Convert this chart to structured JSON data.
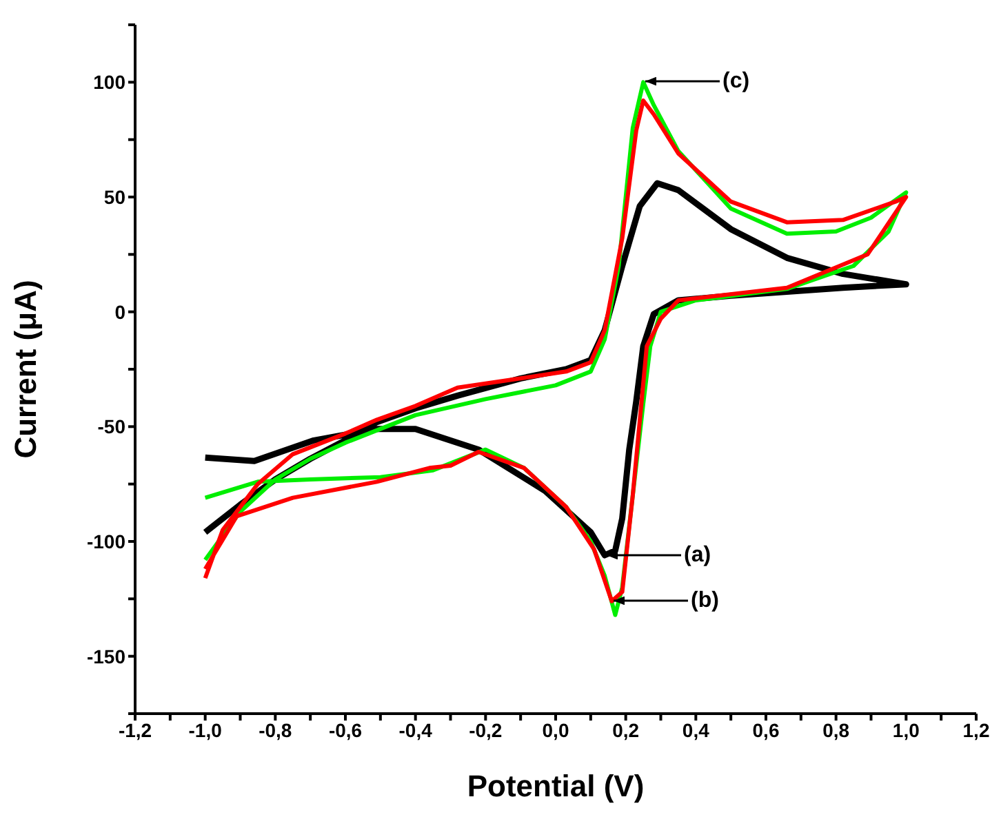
{
  "chart_data": {
    "type": "line",
    "xlabel": "Potential (V)",
    "ylabel": "Current (μA)",
    "xlim": [
      -1.2,
      1.2
    ],
    "xticks": [
      {
        "value": -1.2,
        "label": "-1,2"
      },
      {
        "value": -1.1,
        "label": null
      },
      {
        "value": -1.0,
        "label": "-1,0"
      },
      {
        "value": -0.9,
        "label": null
      },
      {
        "value": -0.8,
        "label": "-0,8"
      },
      {
        "value": -0.7,
        "label": null
      },
      {
        "value": -0.6,
        "label": "-0,6"
      },
      {
        "value": -0.5,
        "label": null
      },
      {
        "value": -0.4,
        "label": "-0,4"
      },
      {
        "value": -0.3,
        "label": null
      },
      {
        "value": -0.2,
        "label": "-0,2"
      },
      {
        "value": -0.1,
        "label": null
      },
      {
        "value": 0,
        "label": "0,0"
      },
      {
        "value": 0.1,
        "label": null
      },
      {
        "value": 0.2,
        "label": "0,2"
      },
      {
        "value": 0.3,
        "label": null
      },
      {
        "value": 0.4,
        "label": "0,4"
      },
      {
        "value": 0.5,
        "label": null
      },
      {
        "value": 0.6,
        "label": "0,6"
      },
      {
        "value": 0.7,
        "label": null
      },
      {
        "value": 0.8,
        "label": "0,8"
      },
      {
        "value": 0.9,
        "label": null
      },
      {
        "value": 1.0,
        "label": "1,0"
      },
      {
        "value": 1.1,
        "label": null
      },
      {
        "value": 1.2,
        "label": "1,2"
      }
    ],
    "ylim": [
      -175,
      125
    ],
    "yticks": [
      {
        "value": -175,
        "label": null
      },
      -150,
      {
        "value": -125,
        "label": null
      },
      -100,
      {
        "value": -75,
        "label": null
      },
      -50,
      {
        "value": -25,
        "label": null
      },
      0,
      {
        "value": 25,
        "label": null
      },
      50,
      {
        "value": 75,
        "label": null
      },
      100,
      {
        "value": 125,
        "label": null
      }
    ],
    "marker": "none",
    "line_style": "solid",
    "series": [
      {
        "color": "#000000",
        "x": [
          -1.0,
          -0.9,
          -0.8,
          -0.7,
          -0.6,
          -0.51,
          -0.4,
          -0.28,
          -0.1,
          0.03,
          0.1,
          0.14,
          0.19,
          0.24,
          0.29,
          0.35,
          0.5,
          0.66,
          0.82,
          1.0,
          0.82,
          0.5,
          0.35,
          0.28,
          0.25,
          0.23,
          0.21,
          0.19,
          0.17,
          0.14,
          0.1,
          -0.03,
          -0.22,
          -0.4,
          -0.51,
          -0.69,
          -0.86,
          -1.0
        ],
        "values": [
          -96,
          -84,
          -73,
          -64,
          -56,
          -48,
          -42,
          -36.5,
          -29,
          -25,
          -21,
          -8,
          20,
          46,
          56,
          53,
          36,
          23.5,
          16.5,
          12,
          10.5,
          7,
          5,
          -1,
          -15,
          -39,
          -60,
          -90,
          -104,
          -106,
          -96,
          -78,
          -60,
          -51,
          -51,
          -56,
          -65,
          -63.5
        ]
      },
      {
        "color": "#ff0000",
        "x": [
          -1.0,
          -0.95,
          -0.85,
          -0.75,
          -0.6,
          -0.51,
          -0.4,
          -0.28,
          -0.1,
          0.03,
          0.1,
          0.14,
          0.19,
          0.23,
          0.25,
          0.28,
          0.35,
          0.5,
          0.66,
          0.82,
          0.97,
          1.0,
          0.89,
          0.66,
          0.35,
          0.3,
          0.26,
          0.22,
          0.19,
          0.16,
          0.11,
          0.03,
          -0.09,
          -0.22,
          -0.3,
          -0.36,
          -0.51,
          -0.75,
          -0.91,
          -1.0
        ],
        "values": [
          -116,
          -95,
          -75,
          -62,
          -53,
          -47,
          -41,
          -33,
          -29,
          -26,
          -22,
          -8,
          32,
          79,
          92,
          86,
          69,
          48,
          39,
          40,
          48,
          50,
          25,
          10.5,
          5,
          -3,
          -15,
          -80,
          -122,
          -126,
          -103.5,
          -85,
          -68,
          -61,
          -67,
          -68,
          -74,
          -81,
          -89,
          -112
        ]
      },
      {
        "color": "#00ee00",
        "x": [
          -1.0,
          -0.9,
          -0.8,
          -0.7,
          -0.6,
          -0.5,
          -0.4,
          -0.2,
          0.0,
          0.1,
          0.14,
          0.18,
          0.22,
          0.25,
          0.28,
          0.35,
          0.5,
          0.66,
          0.8,
          0.9,
          1.0,
          0.95,
          0.85,
          0.66,
          0.4,
          0.3,
          0.27,
          0.25,
          0.22,
          0.19,
          0.17,
          0.14,
          0.1,
          0.03,
          -0.09,
          -0.2,
          -0.3,
          -0.35,
          -0.5,
          -0.7,
          -0.85,
          -1.0
        ],
        "values": [
          -108,
          -87,
          -73,
          -64,
          -57,
          -51,
          -45,
          -38,
          -32,
          -26,
          -12,
          20,
          80,
          100,
          90,
          70,
          45,
          34,
          35,
          41,
          52,
          35,
          20,
          10,
          5,
          0,
          -15,
          -40,
          -80,
          -120,
          -132,
          -115,
          -100,
          -85,
          -68,
          -60,
          -66,
          -69,
          -72,
          -73,
          -74,
          -81
        ]
      }
    ],
    "annotations": [
      "(a)",
      "(b)",
      "(c)"
    ]
  }
}
